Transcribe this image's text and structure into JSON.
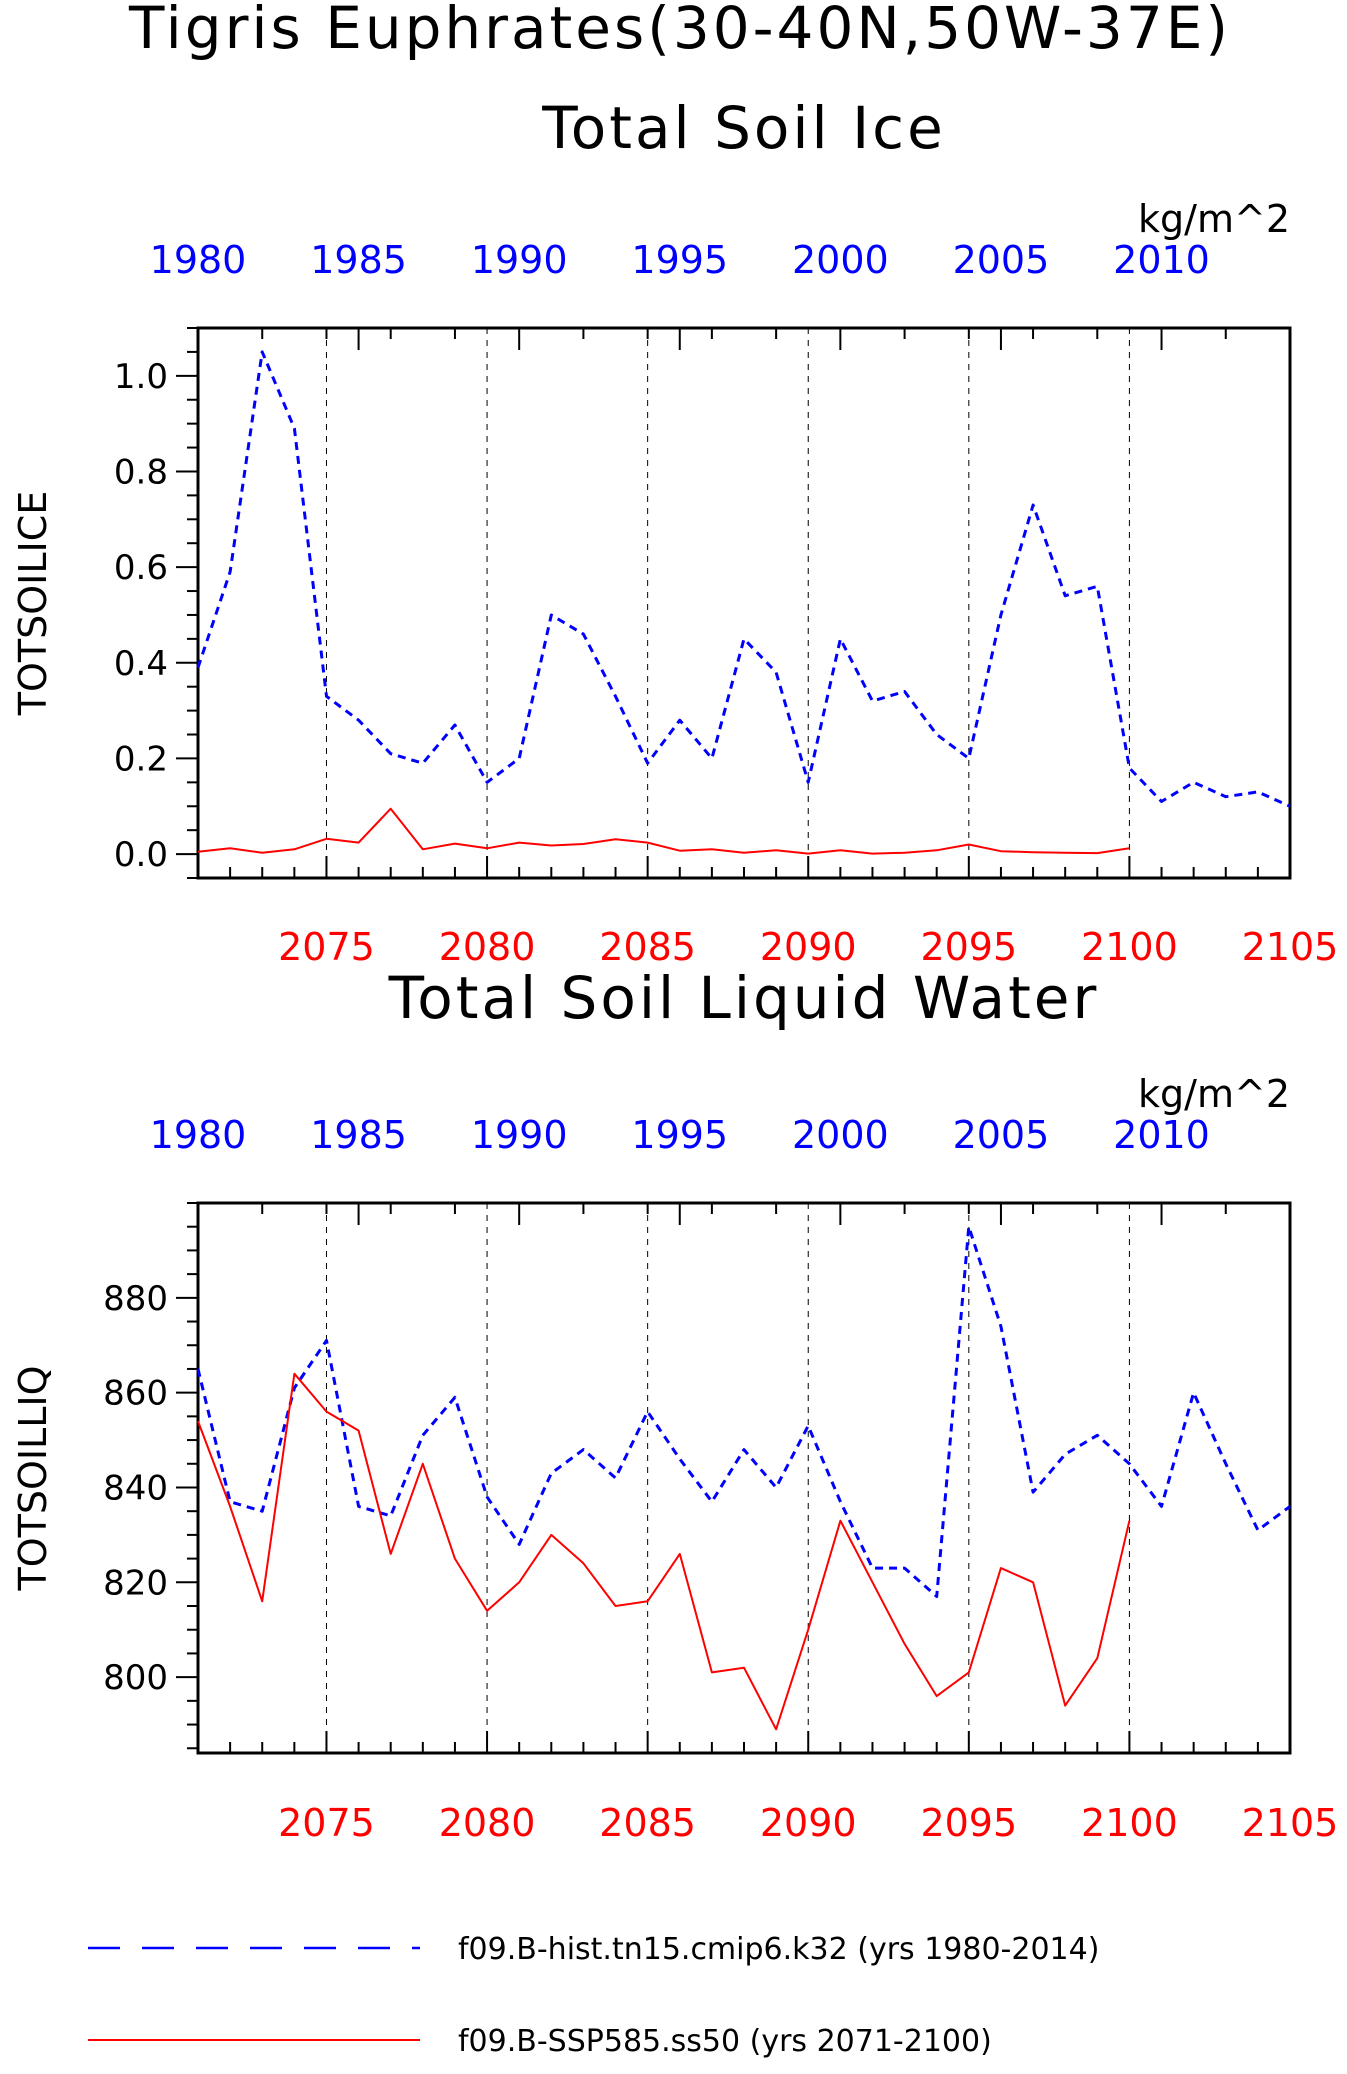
{
  "title": "Tigris Euphrates(30-40N,50W-37E)",
  "legend": [
    {
      "label": "f09.B-hist.tn15.cmip6.k32 (yrs 1980-2014)",
      "color": "#0000ff",
      "style": "dashed"
    },
    {
      "label": "f09.B-SSP585.ss50 (yrs 2071-2100)",
      "color": "#ff0000",
      "style": "solid"
    }
  ],
  "chart_data": [
    {
      "type": "line",
      "subtitle": "Total Soil Ice",
      "ylabel": "TOTSOILICE",
      "units": "kg/m^2",
      "ylim": [
        -0.05,
        1.1
      ],
      "yticks": [
        "0.0",
        "0.2",
        "0.4",
        "0.6",
        "0.8",
        "1.0"
      ],
      "top_x": {
        "range": [
          1980,
          2014
        ],
        "ticks": [
          1980,
          1985,
          1990,
          1995,
          2000,
          2005,
          2010
        ],
        "color": "#0000ff"
      },
      "bottom_x": {
        "range": [
          2071,
          2105
        ],
        "ticks": [
          2075,
          2080,
          2085,
          2090,
          2095,
          2100,
          2105
        ],
        "color": "#ff0000"
      },
      "series": [
        {
          "name": "f09.B-hist.tn15.cmip6.k32 (yrs 1980-2014)",
          "axis": "top",
          "color": "#0000ff",
          "dash": true,
          "x": [
            1980,
            1981,
            1982,
            1983,
            1984,
            1985,
            1986,
            1987,
            1988,
            1989,
            1990,
            1991,
            1992,
            1993,
            1994,
            1995,
            1996,
            1997,
            1998,
            1999,
            2000,
            2001,
            2002,
            2003,
            2004,
            2005,
            2006,
            2007,
            2008,
            2009,
            2010,
            2011,
            2012,
            2013,
            2014
          ],
          "y": [
            0.39,
            0.59,
            1.05,
            0.89,
            0.33,
            0.28,
            0.21,
            0.19,
            0.27,
            0.15,
            0.2,
            0.5,
            0.46,
            0.33,
            0.19,
            0.28,
            0.2,
            0.45,
            0.38,
            0.15,
            0.45,
            0.32,
            0.34,
            0.25,
            0.2,
            0.5,
            0.73,
            0.54,
            0.56,
            0.18,
            0.11,
            0.15,
            0.12,
            0.13,
            0.1
          ]
        },
        {
          "name": "f09.B-SSP585.ss50 (yrs 2071-2100)",
          "axis": "bottom",
          "color": "#ff0000",
          "dash": false,
          "x": [
            2071,
            2072,
            2073,
            2074,
            2075,
            2076,
            2077,
            2078,
            2079,
            2080,
            2081,
            2082,
            2083,
            2084,
            2085,
            2086,
            2087,
            2088,
            2089,
            2090,
            2091,
            2092,
            2093,
            2094,
            2095,
            2096,
            2097,
            2098,
            2099,
            2100
          ],
          "y": [
            0.005,
            0.012,
            0.003,
            0.01,
            0.032,
            0.024,
            0.095,
            0.01,
            0.022,
            0.012,
            0.024,
            0.018,
            0.021,
            0.031,
            0.024,
            0.007,
            0.01,
            0.003,
            0.008,
            0.001,
            0.008,
            0.001,
            0.003,
            0.008,
            0.02,
            0.006,
            0.004,
            0.003,
            0.002,
            0.012
          ]
        }
      ]
    },
    {
      "type": "line",
      "subtitle": "Total Soil Liquid Water",
      "ylabel": "TOTSOILLIQ",
      "units": "kg/m^2",
      "ylim": [
        784,
        900
      ],
      "yticks": [
        "800",
        "820",
        "840",
        "860",
        "880"
      ],
      "top_x": {
        "range": [
          1980,
          2014
        ],
        "ticks": [
          1980,
          1985,
          1990,
          1995,
          2000,
          2005,
          2010
        ],
        "color": "#0000ff"
      },
      "bottom_x": {
        "range": [
          2071,
          2105
        ],
        "ticks": [
          2075,
          2080,
          2085,
          2090,
          2095,
          2100,
          2105
        ],
        "color": "#ff0000"
      },
      "series": [
        {
          "name": "f09.B-hist.tn15.cmip6.k32 (yrs 1980-2014)",
          "axis": "top",
          "color": "#0000ff",
          "dash": true,
          "x": [
            1980,
            1981,
            1982,
            1983,
            1984,
            1985,
            1986,
            1987,
            1988,
            1989,
            1990,
            1991,
            1992,
            1993,
            1994,
            1995,
            1996,
            1997,
            1998,
            1999,
            2000,
            2001,
            2002,
            2003,
            2004,
            2005,
            2006,
            2007,
            2008,
            2009,
            2010,
            2011,
            2012,
            2013,
            2014
          ],
          "y": [
            865,
            837,
            835,
            861,
            871,
            836,
            834,
            851,
            859,
            838,
            828,
            843,
            848,
            842,
            856,
            846,
            837,
            848,
            840,
            853,
            837,
            823,
            823,
            817,
            895,
            874,
            839,
            847,
            851,
            845,
            836,
            860,
            845,
            831,
            836
          ]
        },
        {
          "name": "f09.B-SSP585.ss50 (yrs 2071-2100)",
          "axis": "bottom",
          "color": "#ff0000",
          "dash": false,
          "x": [
            2071,
            2072,
            2073,
            2074,
            2075,
            2076,
            2077,
            2078,
            2079,
            2080,
            2081,
            2082,
            2083,
            2084,
            2085,
            2086,
            2087,
            2088,
            2089,
            2090,
            2091,
            2092,
            2093,
            2094,
            2095,
            2096,
            2097,
            2098,
            2099,
            2100
          ],
          "y": [
            854,
            836,
            816,
            864,
            856,
            852,
            826,
            845,
            825,
            814,
            820,
            830,
            824,
            815,
            816,
            826,
            801,
            802,
            789,
            810,
            833,
            820,
            807,
            796,
            801,
            823,
            820,
            794,
            804,
            833
          ]
        }
      ]
    }
  ]
}
